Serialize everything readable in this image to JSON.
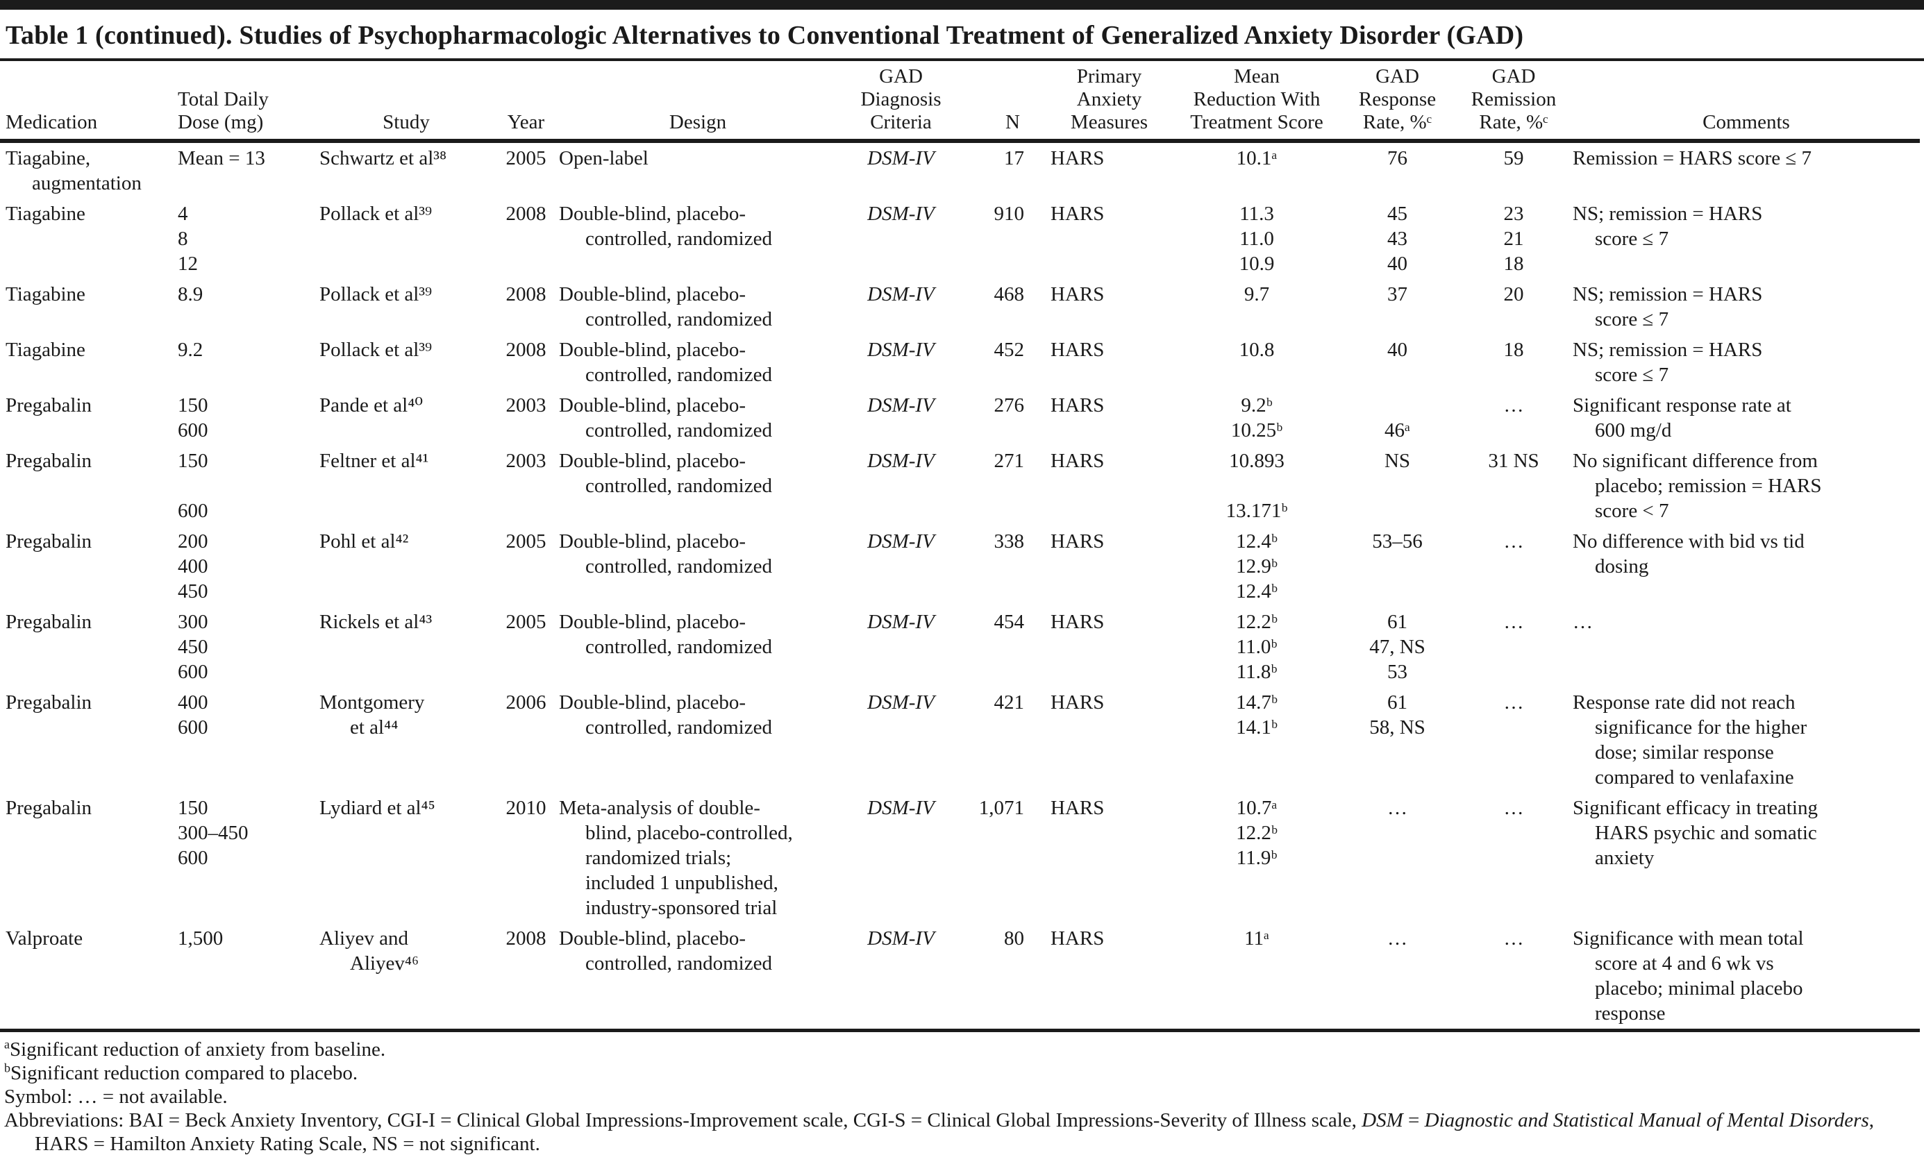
{
  "title": "Table 1 (continued). Studies of Psychopharmacologic Alternatives to Conventional Treatment of Generalized Anxiety Disorder (GAD)",
  "table": {
    "columns": [
      {
        "label": "Medication"
      },
      {
        "label": "Total Daily\nDose (mg)"
      },
      {
        "label": "Study"
      },
      {
        "label": "Year"
      },
      {
        "label": "Design"
      },
      {
        "label": "GAD\nDiagnosis\nCriteria"
      },
      {
        "label": "N"
      },
      {
        "label": "Primary\nAnxiety\nMeasures"
      },
      {
        "label": "Mean\nReduction With\nTreatment Score"
      },
      {
        "label": "GAD\nResponse\nRate, %ᶜ"
      },
      {
        "label": "GAD\nRemission\nRate, %ᶜ"
      },
      {
        "label": "Comments"
      }
    ],
    "rows": [
      {
        "medication": "Tiagabine,\naugmentation",
        "dose": "Mean = 13",
        "study": "Schwartz et al³⁸",
        "year": "2005",
        "design": "Open-label",
        "criteria": "DSM-IV",
        "n": "17",
        "measures": "HARS",
        "score": "10.1ᵃ",
        "response": "76",
        "remission": "59",
        "comments": "Remission = HARS score ≤ 7"
      },
      {
        "medication": "Tiagabine",
        "dose": "4\n8\n12",
        "study": "Pollack et al³⁹",
        "year": "2008",
        "design": "Double-blind, placebo-\ncontrolled, randomized",
        "criteria": "DSM-IV",
        "n": "910",
        "measures": "HARS",
        "score": "11.3\n11.0\n10.9",
        "response": "45\n43\n40",
        "remission": "23\n21\n18",
        "comments": "NS; remission = HARS\nscore ≤ 7"
      },
      {
        "medication": "Tiagabine",
        "dose": "8.9",
        "study": "Pollack et al³⁹",
        "year": "2008",
        "design": "Double-blind, placebo-\ncontrolled, randomized",
        "criteria": "DSM-IV",
        "n": "468",
        "measures": "HARS",
        "score": "9.7",
        "response": "37",
        "remission": "20",
        "comments": "NS; remission = HARS\nscore ≤ 7"
      },
      {
        "medication": "Tiagabine",
        "dose": "9.2",
        "study": "Pollack et al³⁹",
        "year": "2008",
        "design": "Double-blind, placebo-\ncontrolled, randomized",
        "criteria": "DSM-IV",
        "n": "452",
        "measures": "HARS",
        "score": "10.8",
        "response": "40",
        "remission": "18",
        "comments": "NS; remission = HARS\nscore ≤ 7"
      },
      {
        "medication": "Pregabalin",
        "dose": "150\n600",
        "study": "Pande et al⁴⁰",
        "year": "2003",
        "design": "Double-blind, placebo-\ncontrolled, randomized",
        "criteria": "DSM-IV",
        "n": "276",
        "measures": "HARS",
        "score": "9.2ᵇ\n10.25ᵇ",
        "response": " \n46ᵃ",
        "remission": "…",
        "comments": "Significant response rate at\n600 mg/d"
      },
      {
        "medication": "Pregabalin",
        "dose": "150\n \n600",
        "study": "Feltner et al⁴¹",
        "year": "2003",
        "design": "Double-blind, placebo-\ncontrolled, randomized",
        "criteria": "DSM-IV",
        "n": "271",
        "measures": "HARS",
        "score": "10.893\n \n13.171ᵇ",
        "response": "NS",
        "remission": "31 NS",
        "comments": "No significant difference from\nplacebo; remission = HARS\nscore < 7"
      },
      {
        "medication": "Pregabalin",
        "dose": "200\n400\n450",
        "study": "Pohl et al⁴²",
        "year": "2005",
        "design": "Double-blind, placebo-\ncontrolled, randomized",
        "criteria": "DSM-IV",
        "n": "338",
        "measures": "HARS",
        "score": "12.4ᵇ\n12.9ᵇ\n12.4ᵇ",
        "response": "53–56",
        "remission": "…",
        "comments": "No difference with bid vs tid\ndosing"
      },
      {
        "medication": "Pregabalin",
        "dose": "300\n450\n600",
        "study": "Rickels et al⁴³",
        "year": "2005",
        "design": "Double-blind, placebo-\ncontrolled, randomized",
        "criteria": "DSM-IV",
        "n": "454",
        "measures": "HARS",
        "score": "12.2ᵇ\n11.0ᵇ\n11.8ᵇ",
        "response": "61\n47, NS\n53",
        "remission": "…",
        "comments": "…"
      },
      {
        "medication": "Pregabalin",
        "dose": "400\n600",
        "study": "Montgomery\net al⁴⁴",
        "year": "2006",
        "design": "Double-blind, placebo-\ncontrolled, randomized",
        "criteria": "DSM-IV",
        "n": "421",
        "measures": "HARS",
        "score": "14.7ᵇ\n14.1ᵇ",
        "response": "61\n58, NS",
        "remission": "…",
        "comments": "Response rate did not reach\nsignificance for the higher\ndose; similar response\ncompared to venlafaxine"
      },
      {
        "medication": "Pregabalin",
        "dose": "150\n300–450\n600",
        "study": "Lydiard et al⁴⁵",
        "year": "2010",
        "design": "Meta-analysis of double-\nblind, placebo-controlled,\nrandomized trials;\nincluded 1 unpublished,\nindustry-sponsored trial",
        "criteria": "DSM-IV",
        "n": "1,071",
        "measures": "HARS",
        "score": "10.7ᵃ\n12.2ᵇ\n11.9ᵇ",
        "response": "…",
        "remission": "…",
        "comments": "Significant efficacy in treating\nHARS psychic and somatic\nanxiety"
      },
      {
        "medication": "Valproate",
        "dose": "1,500",
        "study": "Aliyev and\nAliyev⁴⁶",
        "year": "2008",
        "design": "Double-blind, placebo-\ncontrolled, randomized",
        "criteria": "DSM-IV",
        "n": "80",
        "measures": "HARS",
        "score": "11ᵃ",
        "response": "…",
        "remission": "…",
        "comments": "Significance with mean total\nscore at 4 and 6 wk vs\nplacebo; minimal placebo\nresponse"
      }
    ]
  },
  "footnotes": {
    "a_marker": "a",
    "a_text": "Significant reduction of anxiety from baseline.",
    "b_marker": "b",
    "b_text": "Significant reduction compared to placebo.",
    "symbol": "Symbol: … = not available.",
    "abbr_1": "Abbreviations: BAI = Beck Anxiety Inventory, CGI-I = Clinical Global Impressions-Improvement scale, CGI-S = Clinical Global Impressions-Severity of Illness scale, ",
    "abbr_dsm": "DSM",
    "abbr_2": " = ",
    "abbr_manual": "Diagnostic and Statistical Manual of Mental Disorders",
    "abbr_3": ", HARS = Hamilton Anxiety Rating Scale, NS = not significant."
  }
}
